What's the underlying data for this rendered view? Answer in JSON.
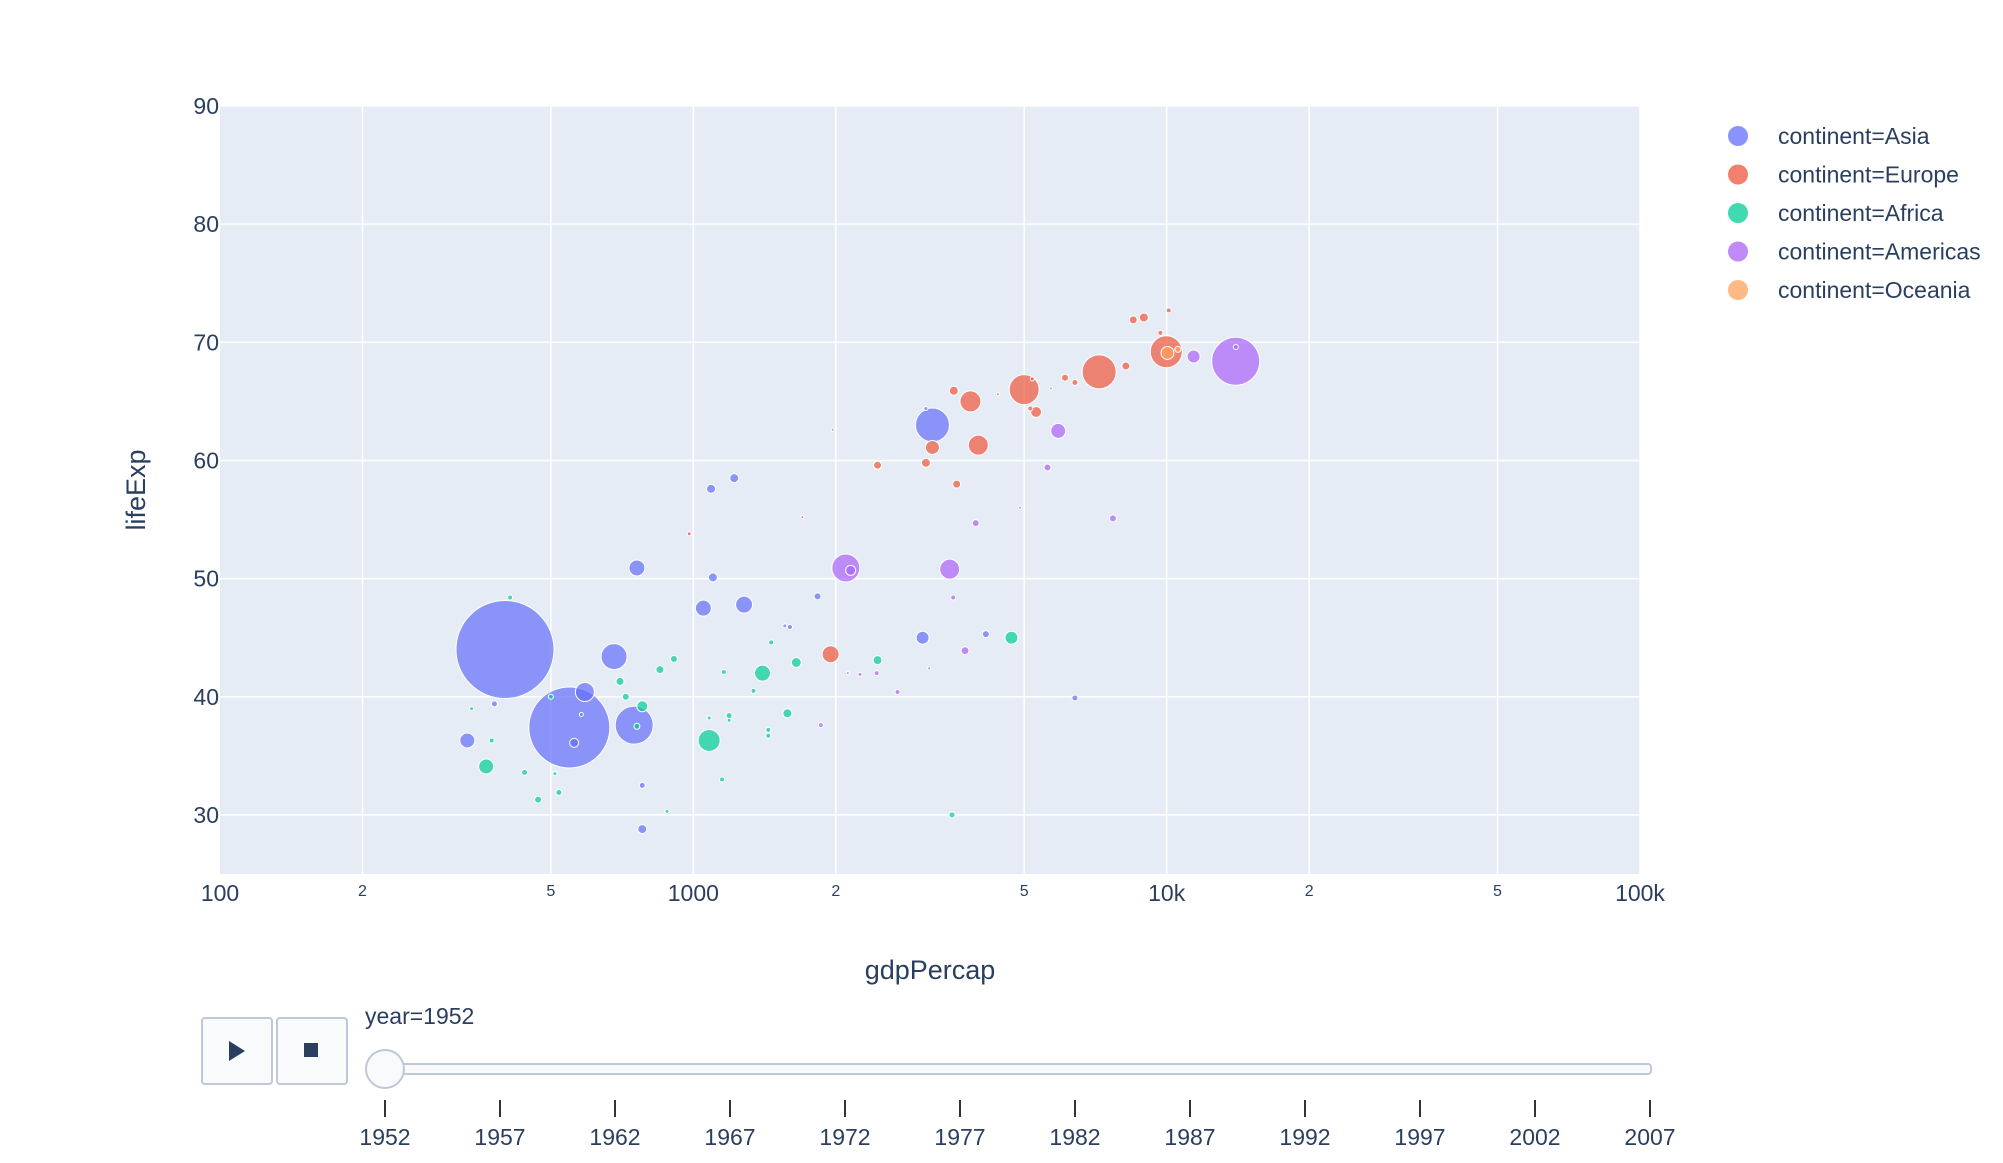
{
  "chart_data": {
    "type": "scatter",
    "subtype": "bubble",
    "title": "",
    "xlabel": "gdpPercap",
    "ylabel": "lifeExp",
    "xscale": "log",
    "xlim": [
      100,
      100000
    ],
    "ylim": [
      25,
      90
    ],
    "grid": true,
    "legend_position": "right",
    "x_ticks": [
      {
        "value": 100,
        "label": "100",
        "major": true
      },
      {
        "value": 200,
        "label": "2",
        "major": false
      },
      {
        "value": 500,
        "label": "5",
        "major": false
      },
      {
        "value": 1000,
        "label": "1000",
        "major": true
      },
      {
        "value": 2000,
        "label": "2",
        "major": false
      },
      {
        "value": 5000,
        "label": "5",
        "major": false
      },
      {
        "value": 10000,
        "label": "10k",
        "major": true
      },
      {
        "value": 20000,
        "label": "2",
        "major": false
      },
      {
        "value": 50000,
        "label": "5",
        "major": false
      },
      {
        "value": 100000,
        "label": "100k",
        "major": true
      }
    ],
    "y_ticks": [
      {
        "value": 30,
        "label": "30"
      },
      {
        "value": 40,
        "label": "40"
      },
      {
        "value": 50,
        "label": "50"
      },
      {
        "value": 60,
        "label": "60"
      },
      {
        "value": 70,
        "label": "70"
      },
      {
        "value": 80,
        "label": "80"
      },
      {
        "value": 90,
        "label": "90"
      }
    ],
    "series": [
      {
        "name": "continent=Asia",
        "color": "#636efa",
        "points": [
          {
            "x": 400,
            "y": 44.0,
            "size": 98
          },
          {
            "x": 547,
            "y": 37.4,
            "size": 81
          },
          {
            "x": 750,
            "y": 37.6,
            "size": 38
          },
          {
            "x": 3200,
            "y": 63.0,
            "size": 34
          },
          {
            "x": 680,
            "y": 43.4,
            "size": 26
          },
          {
            "x": 590,
            "y": 40.4,
            "size": 19
          },
          {
            "x": 1280,
            "y": 47.8,
            "size": 17
          },
          {
            "x": 1050,
            "y": 47.5,
            "size": 16
          },
          {
            "x": 760,
            "y": 50.9,
            "size": 16
          },
          {
            "x": 333,
            "y": 36.3,
            "size": 15
          },
          {
            "x": 3050,
            "y": 45.0,
            "size": 13
          },
          {
            "x": 1090,
            "y": 57.6,
            "size": 9
          },
          {
            "x": 1220,
            "y": 58.5,
            "size": 9
          },
          {
            "x": 1100,
            "y": 50.1,
            "size": 9
          },
          {
            "x": 780,
            "y": 28.8,
            "size": 9
          },
          {
            "x": 1830,
            "y": 48.5,
            "size": 7
          },
          {
            "x": 4150,
            "y": 45.3,
            "size": 7
          },
          {
            "x": 6400,
            "y": 39.9,
            "size": 6
          },
          {
            "x": 780,
            "y": 32.5,
            "size": 6
          },
          {
            "x": 380,
            "y": 39.4,
            "size": 6
          },
          {
            "x": 560,
            "y": 36.1,
            "size": 9
          },
          {
            "x": 1600,
            "y": 45.9,
            "size": 5
          },
          {
            "x": 3100,
            "y": 64.4,
            "size": 4
          },
          {
            "x": 4900,
            "y": 56.0,
            "size": 3
          },
          {
            "x": 3150,
            "y": 42.4,
            "size": 3
          },
          {
            "x": 580,
            "y": 38.5,
            "size": 4
          }
        ]
      },
      {
        "name": "continent=Europe",
        "color": "#ef553b",
        "points": [
          {
            "x": 7200,
            "y": 67.5,
            "size": 34
          },
          {
            "x": 9980,
            "y": 69.2,
            "size": 32
          },
          {
            "x": 5000,
            "y": 66.0,
            "size": 30
          },
          {
            "x": 3850,
            "y": 65.0,
            "size": 21
          },
          {
            "x": 4000,
            "y": 61.3,
            "size": 20
          },
          {
            "x": 1950,
            "y": 43.6,
            "size": 17
          },
          {
            "x": 3200,
            "y": 61.1,
            "size": 14
          },
          {
            "x": 5300,
            "y": 64.1,
            "size": 11
          },
          {
            "x": 3550,
            "y": 65.9,
            "size": 9
          },
          {
            "x": 3100,
            "y": 59.8,
            "size": 9
          },
          {
            "x": 2450,
            "y": 59.6,
            "size": 8
          },
          {
            "x": 3600,
            "y": 58.0,
            "size": 8
          },
          {
            "x": 8950,
            "y": 72.1,
            "size": 9
          },
          {
            "x": 8500,
            "y": 71.9,
            "size": 8
          },
          {
            "x": 8200,
            "y": 68.0,
            "size": 8
          },
          {
            "x": 6100,
            "y": 67.0,
            "size": 7
          },
          {
            "x": 6400,
            "y": 66.6,
            "size": 6
          },
          {
            "x": 5150,
            "y": 64.4,
            "size": 5
          },
          {
            "x": 9700,
            "y": 70.8,
            "size": 5
          },
          {
            "x": 10100,
            "y": 72.7,
            "size": 5
          },
          {
            "x": 980,
            "y": 53.8,
            "size": 4
          },
          {
            "x": 1700,
            "y": 55.2,
            "size": 3
          },
          {
            "x": 5200,
            "y": 66.9,
            "size": 4
          },
          {
            "x": 4400,
            "y": 65.6,
            "size": 3
          }
        ]
      },
      {
        "name": "continent=Africa",
        "color": "#00cc96",
        "points": [
          {
            "x": 1080,
            "y": 36.3,
            "size": 22
          },
          {
            "x": 1400,
            "y": 42.0,
            "size": 16
          },
          {
            "x": 4700,
            "y": 45.0,
            "size": 13
          },
          {
            "x": 365,
            "y": 34.1,
            "size": 15
          },
          {
            "x": 780,
            "y": 39.2,
            "size": 11
          },
          {
            "x": 1650,
            "y": 42.9,
            "size": 10
          },
          {
            "x": 1580,
            "y": 38.6,
            "size": 9
          },
          {
            "x": 2450,
            "y": 43.1,
            "size": 9
          },
          {
            "x": 700,
            "y": 41.3,
            "size": 8
          },
          {
            "x": 850,
            "y": 42.3,
            "size": 8
          },
          {
            "x": 910,
            "y": 43.2,
            "size": 7
          },
          {
            "x": 720,
            "y": 40.0,
            "size": 7
          },
          {
            "x": 470,
            "y": 31.3,
            "size": 7
          },
          {
            "x": 520,
            "y": 31.9,
            "size": 6
          },
          {
            "x": 440,
            "y": 33.6,
            "size": 6
          },
          {
            "x": 3520,
            "y": 30.0,
            "size": 6
          },
          {
            "x": 760,
            "y": 37.5,
            "size": 6
          },
          {
            "x": 1190,
            "y": 38.4,
            "size": 6
          },
          {
            "x": 1460,
            "y": 44.6,
            "size": 5
          },
          {
            "x": 1160,
            "y": 42.1,
            "size": 5
          },
          {
            "x": 1440,
            "y": 37.2,
            "size": 5
          },
          {
            "x": 1440,
            "y": 36.7,
            "size": 5
          },
          {
            "x": 1340,
            "y": 40.5,
            "size": 5
          },
          {
            "x": 1190,
            "y": 38.0,
            "size": 4
          },
          {
            "x": 1150,
            "y": 33.0,
            "size": 5
          },
          {
            "x": 375,
            "y": 36.3,
            "size": 5
          },
          {
            "x": 410,
            "y": 48.4,
            "size": 5
          },
          {
            "x": 500,
            "y": 40.0,
            "size": 5
          },
          {
            "x": 340,
            "y": 39.0,
            "size": 4
          },
          {
            "x": 880,
            "y": 30.3,
            "size": 4
          },
          {
            "x": 510,
            "y": 33.5,
            "size": 4
          },
          {
            "x": 1080,
            "y": 38.2,
            "size": 4
          }
        ]
      },
      {
        "name": "continent=Americas",
        "color": "#ab63fa",
        "points": [
          {
            "x": 13990,
            "y": 68.4,
            "size": 48
          },
          {
            "x": 2100,
            "y": 50.9,
            "size": 28
          },
          {
            "x": 3480,
            "y": 50.8,
            "size": 20
          },
          {
            "x": 5900,
            "y": 62.5,
            "size": 15
          },
          {
            "x": 11400,
            "y": 68.8,
            "size": 13
          },
          {
            "x": 2150,
            "y": 50.7,
            "size": 10
          },
          {
            "x": 3750,
            "y": 43.9,
            "size": 8
          },
          {
            "x": 7700,
            "y": 55.1,
            "size": 7
          },
          {
            "x": 5600,
            "y": 59.4,
            "size": 7
          },
          {
            "x": 3950,
            "y": 54.7,
            "size": 7
          },
          {
            "x": 1860,
            "y": 37.6,
            "size": 5
          },
          {
            "x": 2440,
            "y": 42.0,
            "size": 5
          },
          {
            "x": 2700,
            "y": 40.4,
            "size": 5
          },
          {
            "x": 3540,
            "y": 48.4,
            "size": 5
          },
          {
            "x": 14000,
            "y": 69.6,
            "size": 5
          },
          {
            "x": 2250,
            "y": 41.9,
            "size": 4
          },
          {
            "x": 1560,
            "y": 46.0,
            "size": 4
          },
          {
            "x": 2120,
            "y": 42.0,
            "size": 3
          },
          {
            "x": 1970,
            "y": 62.6,
            "size": 3
          },
          {
            "x": 5700,
            "y": 66.1,
            "size": 3
          }
        ]
      },
      {
        "name": "continent=Oceania",
        "color": "#ffa15a",
        "points": [
          {
            "x": 10040,
            "y": 69.1,
            "size": 13
          },
          {
            "x": 10560,
            "y": 69.4,
            "size": 6
          }
        ]
      }
    ]
  },
  "legend": {
    "items": [
      {
        "label": "continent=Asia",
        "color": "#636efa"
      },
      {
        "label": "continent=Europe",
        "color": "#ef553b"
      },
      {
        "label": "continent=Africa",
        "color": "#00cc96"
      },
      {
        "label": "continent=Americas",
        "color": "#ab63fa"
      },
      {
        "label": "continent=Oceania",
        "color": "#ffa15a"
      }
    ]
  },
  "animation": {
    "current_label": "year=1952",
    "current_index": 0,
    "play_icon": "play-icon",
    "stop_icon": "stop-icon",
    "years": [
      "1952",
      "1957",
      "1962",
      "1967",
      "1972",
      "1977",
      "1982",
      "1987",
      "1992",
      "1997",
      "2002",
      "2007"
    ]
  },
  "colors": {
    "plot_bg": "#e5ecf6",
    "grid": "#ffffff",
    "text": "#2a3f5f",
    "slider_border": "#bec8d9",
    "slider_bg": "#f8fafc"
  }
}
